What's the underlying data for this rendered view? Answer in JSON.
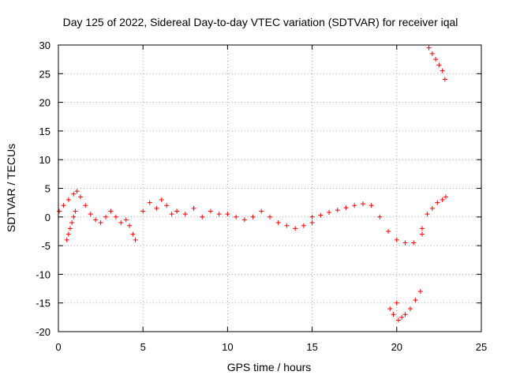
{
  "chart_data": {
    "type": "scatter",
    "title": "Day 125 of 2022, Sidereal Day-to-day VTEC variation (SDTVAR) for receiver iqal",
    "xlabel": "GPS time / hours",
    "ylabel": "SDTVAR / TECUs",
    "xlim": [
      0,
      25
    ],
    "ylim": [
      -20,
      30
    ],
    "xticks": [
      0,
      5,
      10,
      15,
      20,
      25
    ],
    "yticks": [
      -20,
      -15,
      -10,
      -5,
      0,
      5,
      10,
      15,
      20,
      25,
      30
    ],
    "grid": true,
    "marker": "+",
    "color": "#ff0000",
    "series": [
      {
        "name": "SDTVAR",
        "segments": [
          {
            "x": [
              0.05,
              0.3,
              0.6,
              0.9,
              1.1,
              1.3,
              1.6,
              1.9,
              2.2,
              2.5
            ],
            "y": [
              1.0,
              2.0,
              3.0,
              4.0,
              4.5,
              3.5,
              2.0,
              0.5,
              -0.5,
              -1.0
            ]
          },
          {
            "x": [
              0.5,
              0.6,
              0.7,
              0.8,
              0.9,
              1.0
            ],
            "y": [
              -4.0,
              -3.0,
              -2.0,
              -1.0,
              0.0,
              1.0
            ]
          },
          {
            "x": [
              2.8,
              3.1,
              3.4,
              3.7,
              4.0,
              4.2,
              4.4,
              4.55
            ],
            "y": [
              0.0,
              1.0,
              0.0,
              -1.0,
              -0.5,
              -1.5,
              -3.0,
              -4.0
            ]
          },
          {
            "x": [
              5.0,
              5.4,
              5.8,
              6.1,
              6.4,
              6.7,
              7.0
            ],
            "y": [
              1.0,
              2.5,
              1.5,
              3.0,
              2.0,
              0.5,
              1.0
            ]
          },
          {
            "x": [
              7.0,
              7.5,
              8.0,
              8.5,
              9.0,
              9.5,
              10.0,
              10.5,
              11.0,
              11.5,
              12.0,
              12.5,
              13.0,
              13.5,
              14.0,
              14.5,
              15.0
            ],
            "y": [
              1.0,
              0.5,
              1.5,
              0.0,
              1.0,
              0.5,
              0.5,
              0.0,
              -0.5,
              0.0,
              1.0,
              0.0,
              -1.0,
              -1.5,
              -2.0,
              -1.5,
              -1.0
            ]
          },
          {
            "x": [
              15.0,
              15.5,
              16.0,
              16.5,
              17.0,
              17.5,
              18.0,
              18.5,
              19.0,
              19.5,
              20.0,
              20.5,
              21.0,
              21.5
            ],
            "y": [
              0.0,
              0.3,
              0.8,
              1.2,
              1.6,
              2.0,
              2.3,
              2.0,
              0.0,
              -2.5,
              -4.0,
              -4.5,
              -4.5,
              -3.0
            ]
          },
          {
            "x": [
              21.5,
              21.8,
              22.1,
              22.4,
              22.7,
              22.9
            ],
            "y": [
              -2.0,
              0.5,
              1.5,
              2.5,
              3.0,
              3.5
            ]
          },
          {
            "x": [
              19.6,
              19.8,
              20.0,
              20.1,
              20.3,
              20.5,
              20.8,
              21.1,
              21.4
            ],
            "y": [
              -16.0,
              -17.0,
              -15.0,
              -18.0,
              -17.5,
              -17.0,
              -16.0,
              -14.5,
              -13.0
            ]
          },
          {
            "x": [
              21.9,
              22.1,
              22.3,
              22.5,
              22.7,
              22.85
            ],
            "y": [
              29.5,
              28.5,
              27.5,
              26.5,
              25.5,
              24.0
            ]
          }
        ]
      }
    ]
  }
}
